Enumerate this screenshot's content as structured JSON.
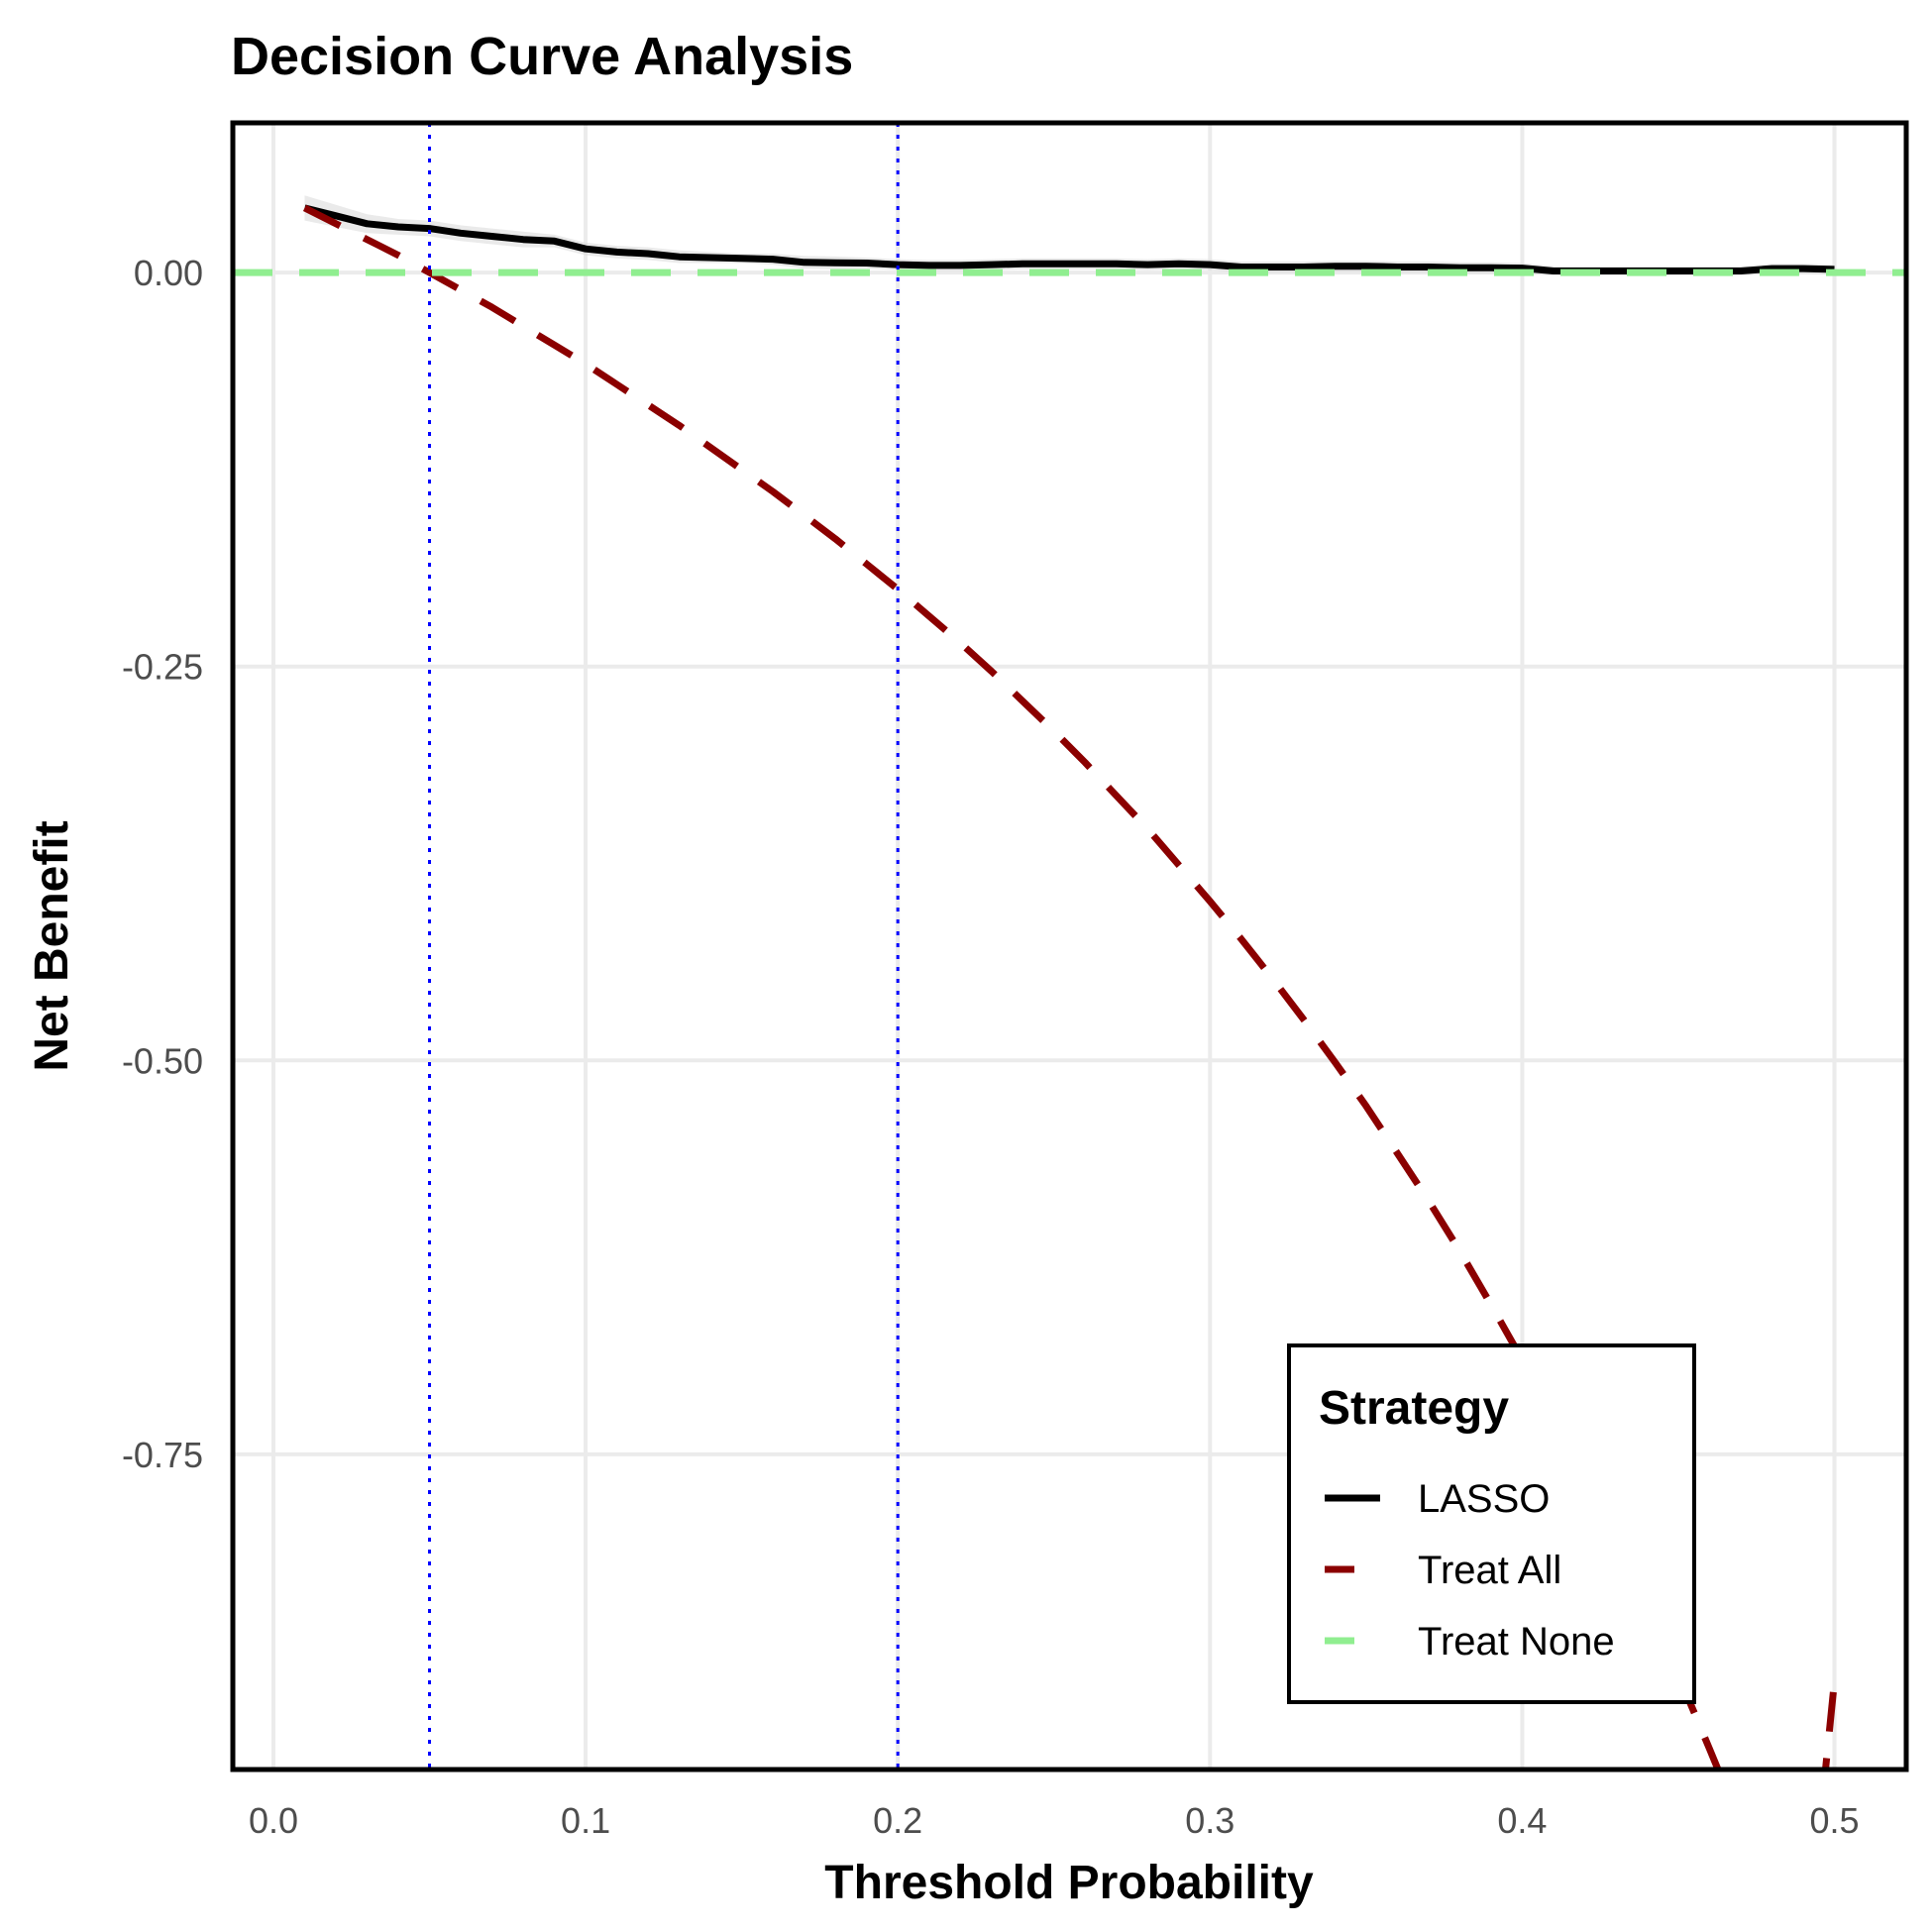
{
  "chart_data": {
    "type": "line",
    "title": "Decision Curve Analysis",
    "xlabel": "Threshold Probability",
    "ylabel": "Net Benefit",
    "xlim": [
      -0.013,
      0.523
    ],
    "ylim": [
      -0.95,
      0.095
    ],
    "x_ticks": [
      0.0,
      0.1,
      0.2,
      0.3,
      0.4,
      0.5
    ],
    "x_tick_labels": [
      "0.0",
      "0.1",
      "0.2",
      "0.3",
      "0.4",
      "0.5"
    ],
    "y_ticks": [
      0.0,
      -0.25,
      -0.5,
      -0.75
    ],
    "y_tick_labels": [
      "0.00",
      "-0.25",
      "-0.50",
      "-0.75"
    ],
    "grid": true,
    "reference_lines": [
      {
        "axis": "x",
        "value": 0.05,
        "color": "#0000ff",
        "style": "dotted"
      },
      {
        "axis": "x",
        "value": 0.2,
        "color": "#0000ff",
        "style": "dotted"
      }
    ],
    "legend": {
      "title": "Strategy",
      "position": "bottom-right"
    },
    "series": [
      {
        "name": "LASSO",
        "color": "#000000",
        "style": "solid",
        "x": [
          0.01,
          0.02,
          0.03,
          0.04,
          0.05,
          0.06,
          0.07,
          0.08,
          0.09,
          0.1,
          0.11,
          0.12,
          0.13,
          0.14,
          0.15,
          0.16,
          0.17,
          0.18,
          0.19,
          0.2,
          0.21,
          0.22,
          0.23,
          0.24,
          0.25,
          0.26,
          0.27,
          0.28,
          0.29,
          0.3,
          0.31,
          0.32,
          0.33,
          0.34,
          0.35,
          0.36,
          0.37,
          0.38,
          0.39,
          0.4,
          0.41,
          0.42,
          0.43,
          0.44,
          0.45,
          0.46,
          0.47,
          0.48,
          0.49,
          0.5
        ],
        "values": [
          0.041,
          0.036,
          0.031,
          0.029,
          0.028,
          0.025,
          0.023,
          0.021,
          0.02,
          0.015,
          0.013,
          0.012,
          0.01,
          0.0095,
          0.009,
          0.0085,
          0.0065,
          0.0062,
          0.006,
          0.005,
          0.0045,
          0.0045,
          0.005,
          0.0055,
          0.0055,
          0.0055,
          0.0055,
          0.005,
          0.0055,
          0.005,
          0.0035,
          0.0035,
          0.0035,
          0.004,
          0.004,
          0.0035,
          0.0035,
          0.003,
          0.003,
          0.0028,
          0.001,
          0.001,
          0.001,
          0.001,
          0.001,
          0.001,
          0.001,
          0.0025,
          0.0025,
          0.002
        ],
        "band_upper": [
          0.049,
          0.043,
          0.037,
          0.034,
          0.033,
          0.03,
          0.028,
          0.026,
          0.024,
          0.019,
          0.017,
          0.016,
          0.014,
          0.013,
          0.012,
          0.012,
          0.0105,
          0.0102,
          0.0095,
          0.0085,
          0.008,
          0.008,
          0.0085,
          0.009,
          0.009,
          0.009,
          0.009,
          0.0085,
          0.009,
          0.0085,
          0.007,
          0.007,
          0.007,
          0.0075,
          0.0075,
          0.007,
          0.007,
          0.0065,
          0.0065,
          0.006,
          0.004,
          0.004,
          0.004,
          0.004,
          0.004,
          0.004,
          0.004,
          0.0055,
          0.0055,
          0.005
        ],
        "band_lower": [
          0.033,
          0.029,
          0.025,
          0.024,
          0.023,
          0.02,
          0.018,
          0.016,
          0.016,
          0.011,
          0.009,
          0.008,
          0.006,
          0.006,
          0.006,
          0.005,
          0.0025,
          0.0022,
          0.0025,
          0.0015,
          0.001,
          0.001,
          0.0015,
          0.002,
          0.002,
          0.002,
          0.002,
          0.0015,
          0.002,
          0.0015,
          0.0,
          0.0,
          0.0,
          0.0005,
          0.0005,
          0.0,
          0.0,
          -0.0005,
          -0.0005,
          -0.0004,
          -0.002,
          -0.002,
          -0.002,
          -0.002,
          -0.002,
          -0.002,
          -0.002,
          -0.0005,
          -0.0005,
          -0.001
        ]
      },
      {
        "name": "Treat All",
        "color": "#8b0000",
        "style": "dashed",
        "x": [
          0.01,
          0.02,
          0.03,
          0.04,
          0.05,
          0.06,
          0.07,
          0.08,
          0.09,
          0.1,
          0.11,
          0.12,
          0.13,
          0.14,
          0.15,
          0.16,
          0.17,
          0.18,
          0.19,
          0.2,
          0.21,
          0.22,
          0.23,
          0.24,
          0.25,
          0.26,
          0.27,
          0.28,
          0.29,
          0.3,
          0.31,
          0.32,
          0.33,
          0.34,
          0.35,
          0.36,
          0.37,
          0.38,
          0.39,
          0.4,
          0.41,
          0.42,
          0.43,
          0.44,
          0.45,
          0.46,
          0.47,
          0.48,
          0.49,
          0.5
        ],
        "values": [
          0.041,
          0.031,
          0.021,
          0.011,
          0.0,
          -0.011,
          -0.022,
          -0.034,
          -0.046,
          -0.058,
          -0.071,
          -0.084,
          -0.097,
          -0.111,
          -0.125,
          -0.139,
          -0.154,
          -0.169,
          -0.185,
          -0.201,
          -0.218,
          -0.235,
          -0.253,
          -0.272,
          -0.291,
          -0.311,
          -0.332,
          -0.353,
          -0.376,
          -0.399,
          -0.423,
          -0.448,
          -0.474,
          -0.501,
          -0.529,
          -0.559,
          -0.589,
          -0.621,
          -0.655,
          -0.69,
          -0.726,
          -0.764,
          -0.804,
          -0.846,
          -0.89,
          -0.937,
          -0.985,
          -1.036,
          -1.09,
          -0.894
        ]
      },
      {
        "name": "Treat None",
        "color": "#90ee90",
        "style": "dashed",
        "x": [
          -0.013,
          0.523
        ],
        "values": [
          0.0,
          0.0
        ]
      }
    ]
  }
}
